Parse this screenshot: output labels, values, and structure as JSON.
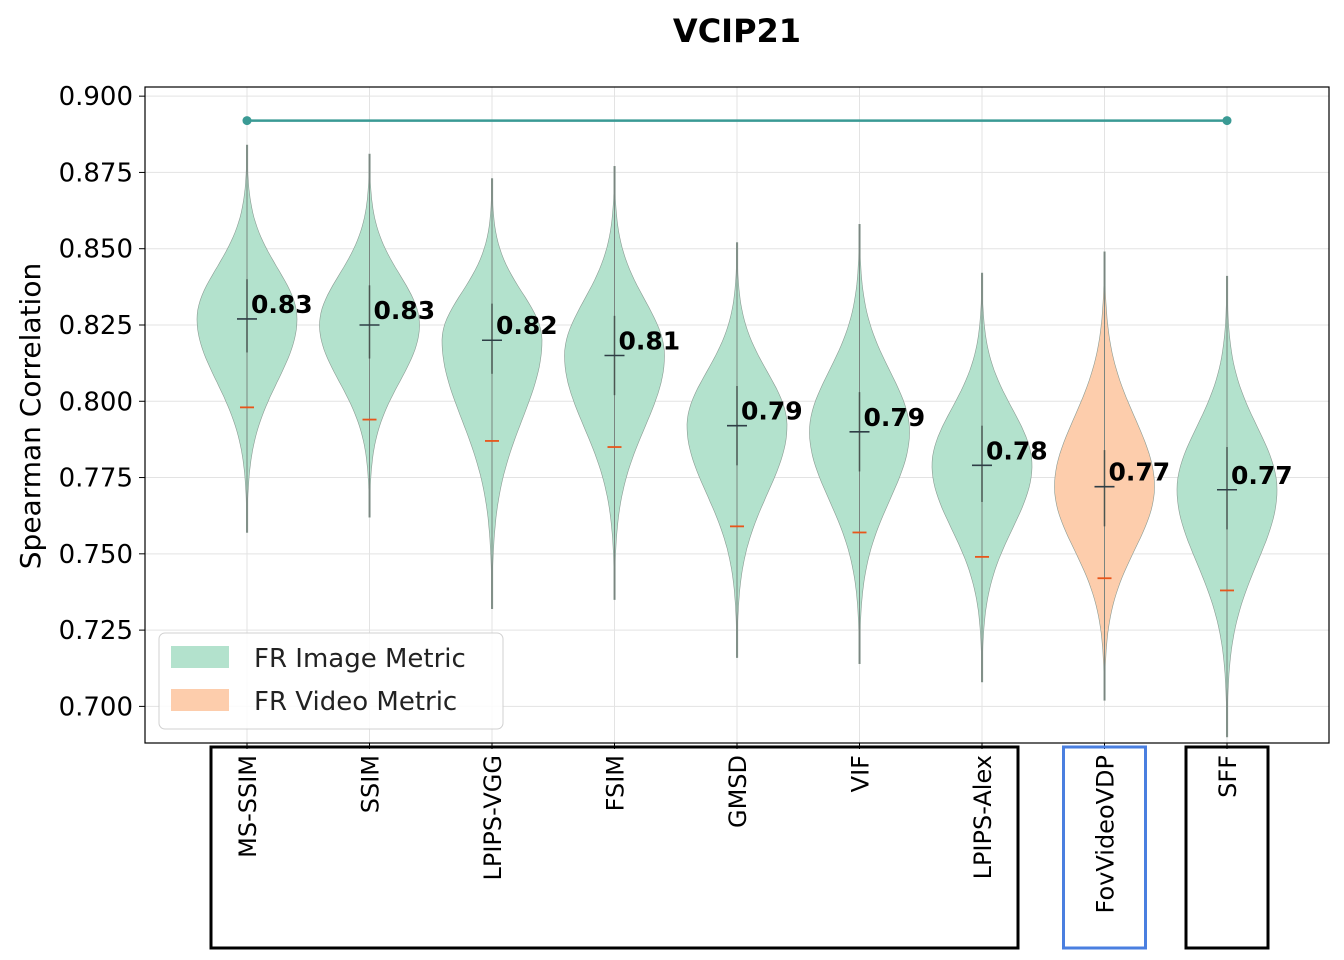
{
  "chart_data": {
    "type": "violin",
    "title": "VCIP21",
    "ylabel": "Spearman Correlation",
    "xlabel": "",
    "ylim": [
      0.688,
      0.903
    ],
    "yticks": [
      "0.700",
      "0.725",
      "0.750",
      "0.775",
      "0.800",
      "0.825",
      "0.850",
      "0.875",
      "0.900"
    ],
    "grid": true,
    "legend_position": "bottom-left",
    "legend": [
      {
        "label": "FR Image Metric",
        "color": "#b3e2cd"
      },
      {
        "label": "FR Video Metric",
        "color": "#fdcdac"
      }
    ],
    "colors": {
      "image": "#b3e2cd",
      "video": "#fdcdac",
      "median_line": "#2f3e46",
      "orange_tick": "#e8551a",
      "significance_line": "#3a9a94"
    },
    "categories": [
      "MS-SSIM",
      "SSIM",
      "LPIPS-VGG",
      "FSIM",
      "GMSD",
      "VIF",
      "LPIPS-Alex",
      "FovVideoVDP",
      "SFF"
    ],
    "series": [
      {
        "metric": "MS-SSIM",
        "group": "image",
        "mean": 0.827,
        "label": "0.83",
        "min": 0.757,
        "max": 0.884,
        "q1": 0.816,
        "q3": 0.84,
        "low_marker": 0.798
      },
      {
        "metric": "SSIM",
        "group": "image",
        "mean": 0.825,
        "label": "0.83",
        "min": 0.762,
        "max": 0.881,
        "q1": 0.814,
        "q3": 0.838,
        "low_marker": 0.794
      },
      {
        "metric": "LPIPS-VGG",
        "group": "image",
        "mean": 0.82,
        "label": "0.82",
        "min": 0.732,
        "max": 0.873,
        "q1": 0.809,
        "q3": 0.832,
        "low_marker": 0.787
      },
      {
        "metric": "FSIM",
        "group": "image",
        "mean": 0.815,
        "label": "0.81",
        "min": 0.735,
        "max": 0.877,
        "q1": 0.802,
        "q3": 0.828,
        "low_marker": 0.785
      },
      {
        "metric": "GMSD",
        "group": "image",
        "mean": 0.792,
        "label": "0.79",
        "min": 0.716,
        "max": 0.852,
        "q1": 0.779,
        "q3": 0.805,
        "low_marker": 0.759
      },
      {
        "metric": "VIF",
        "group": "image",
        "mean": 0.79,
        "label": "0.79",
        "min": 0.714,
        "max": 0.858,
        "q1": 0.777,
        "q3": 0.803,
        "low_marker": 0.757
      },
      {
        "metric": "LPIPS-Alex",
        "group": "image",
        "mean": 0.779,
        "label": "0.78",
        "min": 0.708,
        "max": 0.842,
        "q1": 0.767,
        "q3": 0.792,
        "low_marker": 0.749
      },
      {
        "metric": "FovVideoVDP",
        "group": "video",
        "mean": 0.772,
        "label": "0.77",
        "min": 0.702,
        "max": 0.849,
        "q1": 0.759,
        "q3": 0.784,
        "low_marker": 0.742
      },
      {
        "metric": "SFF",
        "group": "image",
        "mean": 0.771,
        "label": "0.77",
        "min": 0.69,
        "max": 0.841,
        "q1": 0.758,
        "q3": 0.785,
        "low_marker": 0.738
      }
    ],
    "significance_bracket": {
      "from": "MS-SSIM",
      "to": "SFF",
      "y": 0.892
    },
    "x_groups": [
      {
        "members": [
          "MS-SSIM",
          "SSIM",
          "LPIPS-VGG",
          "FSIM",
          "GMSD",
          "VIF",
          "LPIPS-Alex"
        ],
        "border": "#000000"
      },
      {
        "members": [
          "FovVideoVDP"
        ],
        "border": "#4a7fe0"
      },
      {
        "members": [
          "SFF"
        ],
        "border": "#000000"
      }
    ]
  }
}
